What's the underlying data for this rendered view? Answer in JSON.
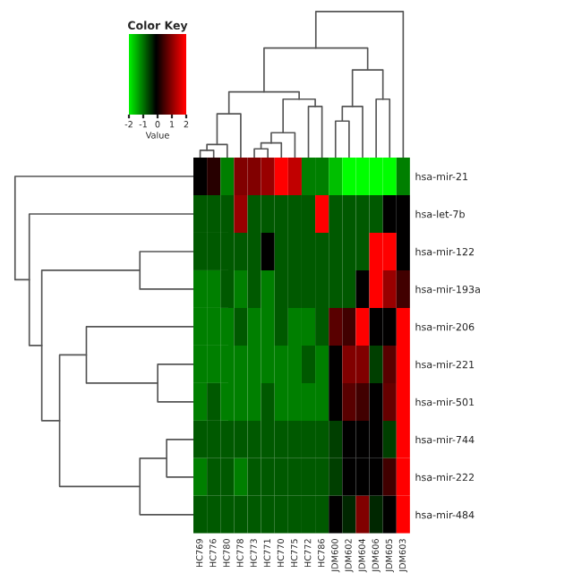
{
  "chart_data": {
    "type": "heatmap",
    "annotations": [
      "Color Key"
    ],
    "clabel": "Value",
    "categories": [
      "HC769",
      "HC776",
      "HC780",
      "HC778",
      "HC773",
      "HC771",
      "HC770",
      "HC775",
      "HC772",
      "HC786",
      "JDM600",
      "JDM602",
      "JDM604",
      "JDM606",
      "JDM605",
      "JDM603"
    ],
    "y_categories": [
      "hsa-mir-21",
      "hsa-let-7b",
      "hsa-mir-122",
      "hsa-mir-193a",
      "hsa-mir-206",
      "hsa-mir-221",
      "hsa-mir-501",
      "hsa-mir-744",
      "hsa-mir-222",
      "hsa-mir-484"
    ],
    "cells": [
      [
        0,
        0.3,
        -1,
        1,
        1,
        1.2,
        2,
        1.5,
        -1,
        -1,
        -1.5,
        -2,
        -2,
        -2,
        -2,
        -1
      ],
      [
        -0.7,
        -0.7,
        -0.7,
        1.2,
        -0.7,
        -0.7,
        -0.7,
        -0.7,
        -0.7,
        2,
        -0.7,
        -0.7,
        -0.7,
        -0.7,
        0,
        0
      ],
      [
        -0.7,
        -0.7,
        -0.7,
        -0.7,
        -0.7,
        0,
        -0.7,
        -0.7,
        -0.7,
        -0.7,
        -0.7,
        -0.7,
        -0.7,
        2,
        2,
        0
      ],
      [
        -1,
        -1,
        -0.7,
        -1,
        -0.7,
        -1,
        -0.7,
        -0.7,
        -0.7,
        -0.7,
        -0.7,
        -0.7,
        0,
        2,
        1.2,
        0.5
      ],
      [
        -1,
        -1,
        -1,
        -0.7,
        -1,
        -1,
        -0.7,
        -1,
        -1,
        -0.7,
        0.7,
        0.5,
        2,
        0,
        0,
        2
      ],
      [
        -1,
        -1,
        -1,
        -1,
        -1,
        -1,
        -1,
        -1,
        -0.7,
        -1,
        0,
        1,
        1,
        -0.5,
        0.7,
        2
      ],
      [
        -1,
        -0.7,
        -1,
        -1,
        -1,
        -0.7,
        -1,
        -1,
        -1,
        -1,
        0,
        0.7,
        0.5,
        0,
        0.8,
        2
      ],
      [
        -0.7,
        -0.7,
        -0.7,
        -0.7,
        -0.7,
        -0.7,
        -0.7,
        -0.7,
        -0.7,
        -0.7,
        -0.5,
        0,
        0,
        0,
        -0.5,
        2
      ],
      [
        -1,
        -0.7,
        -0.7,
        -1,
        -0.7,
        -0.7,
        -0.7,
        -0.7,
        -0.7,
        -0.7,
        -0.5,
        0,
        0,
        0,
        0.5,
        2
      ],
      [
        -0.7,
        -0.7,
        -0.7,
        -0.7,
        -0.7,
        -0.7,
        -0.7,
        -0.7,
        -0.7,
        -0.7,
        0,
        -0.3,
        1,
        -0.3,
        0,
        2
      ]
    ],
    "clim": [
      -2,
      2
    ],
    "cticks": [
      -2,
      -1,
      0,
      1,
      2
    ]
  }
}
